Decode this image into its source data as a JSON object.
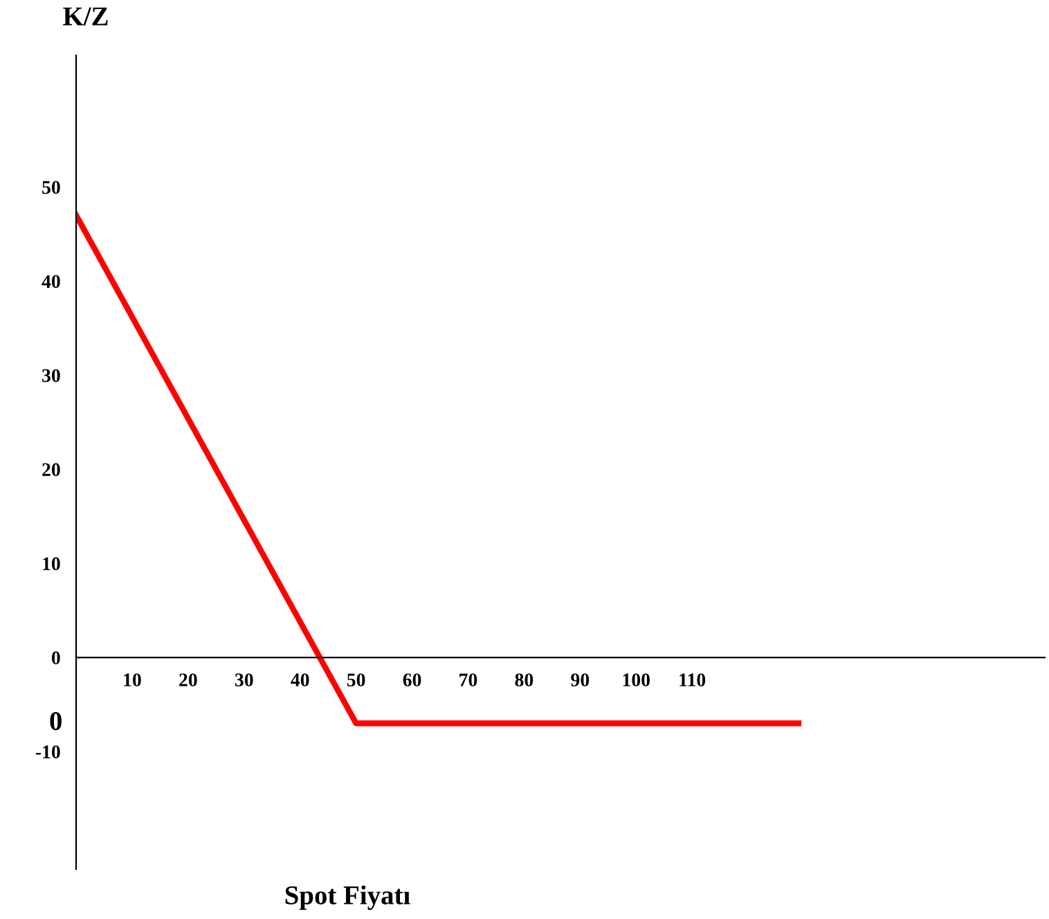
{
  "chart_data": {
    "type": "line",
    "ylabel": "K/Z",
    "xlabel": "Spot Fiyatı",
    "x": [
      0,
      50,
      129
    ],
    "series": [
      {
        "color": "#ff0000",
        "values": [
          47,
          -7,
          -7
        ]
      }
    ],
    "xlim": [
      0,
      173
    ],
    "ylim": [
      -22.5,
      64
    ],
    "xticks": [
      10,
      20,
      30,
      40,
      50,
      60,
      70,
      80,
      90,
      100,
      110
    ],
    "yticks": [
      -10,
      0,
      10,
      20,
      30,
      40,
      50
    ],
    "annotations": [
      "0"
    ],
    "grid": false,
    "legend": false,
    "marker": "none",
    "line_style": "solid"
  }
}
